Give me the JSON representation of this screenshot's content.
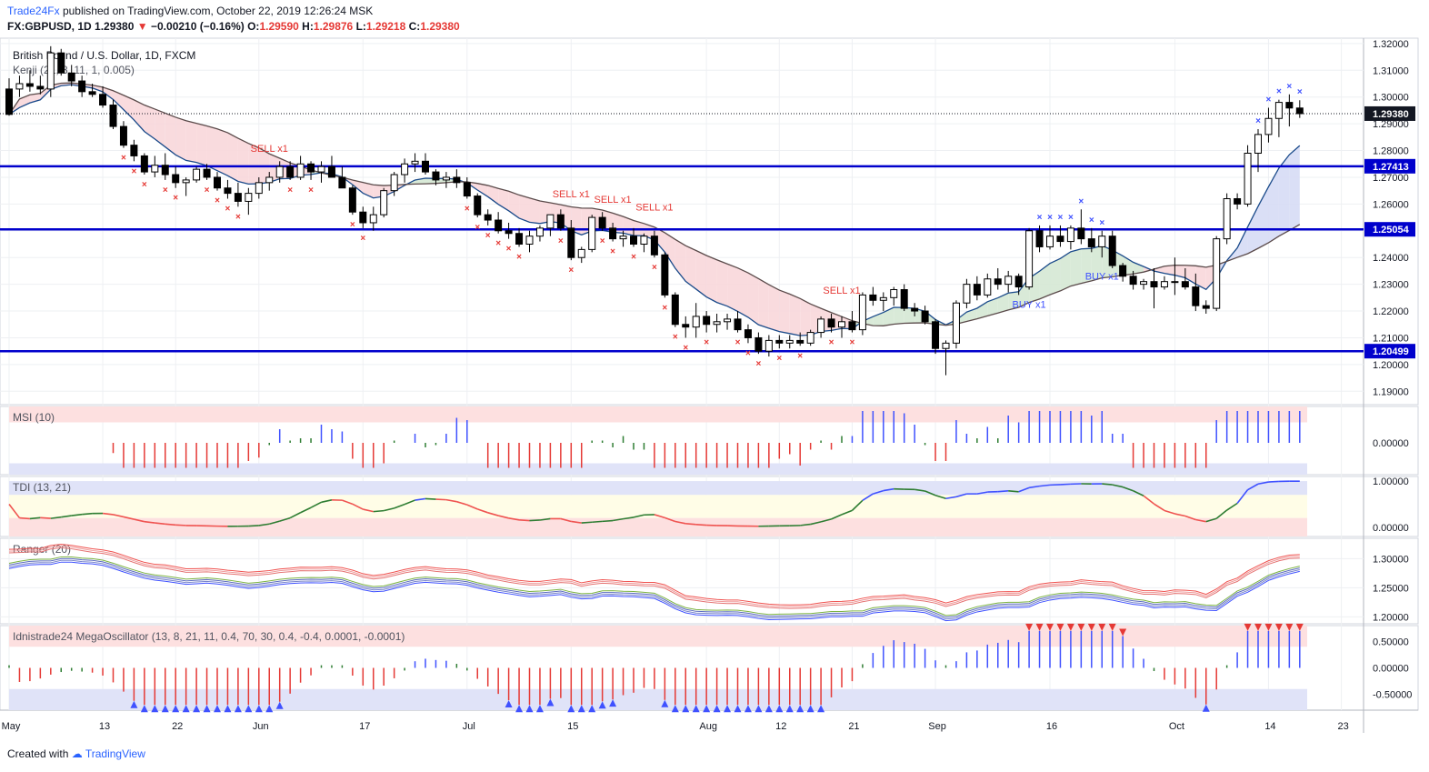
{
  "header": {
    "publisher": "Trade24Fx",
    "published_text": "published on TradingView.com, October 22, 2019 12:26:24 MSK",
    "symbol": "FX:GBPUSD, 1D",
    "last": "1.29380",
    "change": "−0.00210 (−0.16%)",
    "o_label": "O:",
    "o": "1.29590",
    "h_label": "H:",
    "h": "1.29876",
    "l_label": "L:",
    "l": "1.29218",
    "c_label": "C:",
    "c": "1.29380"
  },
  "footer": {
    "created_with": "Created with",
    "brand": "TradingView"
  },
  "colors": {
    "up": "#ffffff",
    "down": "#000000",
    "level": "#0000cc",
    "sell": "#e53935",
    "buy": "#3f51ff",
    "grid": "#eef0f3",
    "cloud_bear": "#f8d7da",
    "cloud_bull": "#d5e8d4",
    "cloud_blue": "#d6dcf5"
  },
  "chart_data": [
    {
      "type": "candlestick",
      "title": "British Pound / U.S. Dollar, 1D, FXCM",
      "indicator_label": "Kenji (21, 8, 11, 1, 0.005)",
      "ylim": [
        1.185,
        1.322
      ],
      "y_ticks": [
        "1.32000",
        "1.31000",
        "1.30000",
        "1.29000",
        "1.28000",
        "1.27000",
        "1.26000",
        "1.25000",
        "1.24000",
        "1.23000",
        "1.22000",
        "1.21000",
        "1.20000",
        "1.19000"
      ],
      "price_line": {
        "value": 1.2938,
        "label": "1.29380"
      },
      "levels": [
        {
          "value": 1.27413,
          "label": "1.27413"
        },
        {
          "value": 1.25054,
          "label": "1.25054"
        },
        {
          "value": 1.20499,
          "label": "1.20499"
        }
      ],
      "x_ticks": [
        {
          "label": "May",
          "i": 0
        },
        {
          "label": "13",
          "i": 9
        },
        {
          "label": "22",
          "i": 16
        },
        {
          "label": "Jun",
          "i": 24
        },
        {
          "label": "17",
          "i": 34
        },
        {
          "label": "Jul",
          "i": 44
        },
        {
          "label": "15",
          "i": 54
        },
        {
          "label": "Aug",
          "i": 67
        },
        {
          "label": "12",
          "i": 74
        },
        {
          "label": "21",
          "i": 81
        },
        {
          "label": "Sep",
          "i": 89
        },
        {
          "label": "16",
          "i": 100
        },
        {
          "label": "Oct",
          "i": 112
        },
        {
          "label": "14",
          "i": 121
        },
        {
          "label": "23",
          "i": 128
        }
      ],
      "signal_labels": [
        {
          "text": "SELL x1",
          "i": 25,
          "v": 1.2795
        },
        {
          "text": "SELL x1",
          "i": 54,
          "v": 1.2625
        },
        {
          "text": "SELL x1",
          "i": 58,
          "v": 1.2605
        },
        {
          "text": "SELL x1",
          "i": 62,
          "v": 1.2575
        },
        {
          "text": "SELL x1",
          "i": 80,
          "v": 1.2265
        },
        {
          "text": "BUY x1",
          "i": 98,
          "v": 1.2212
        },
        {
          "text": "BUY x1",
          "i": 105,
          "v": 1.2318
        }
      ],
      "candles": [
        [
          1.303,
          1.307,
          1.293,
          1.2935
        ],
        [
          1.303,
          1.308,
          1.3,
          1.305
        ],
        [
          1.305,
          1.31,
          1.302,
          1.304
        ],
        [
          1.304,
          1.308,
          1.301,
          1.303
        ],
        [
          1.303,
          1.319,
          1.3,
          1.3165
        ],
        [
          1.3165,
          1.318,
          1.308,
          1.309
        ],
        [
          1.309,
          1.312,
          1.304,
          1.306
        ],
        [
          1.306,
          1.308,
          1.3,
          1.302
        ],
        [
          1.302,
          1.305,
          1.3,
          1.301
        ],
        [
          1.301,
          1.304,
          1.296,
          1.297
        ],
        [
          1.297,
          1.299,
          1.288,
          1.289
        ],
        [
          1.289,
          1.291,
          1.281,
          1.282
        ],
        [
          1.282,
          1.284,
          1.276,
          1.278
        ],
        [
          1.278,
          1.279,
          1.271,
          1.272
        ],
        [
          1.272,
          1.278,
          1.27,
          1.2745
        ],
        [
          1.2745,
          1.279,
          1.269,
          1.271
        ],
        [
          1.271,
          1.274,
          1.266,
          1.268
        ],
        [
          1.268,
          1.27,
          1.263,
          1.269
        ],
        [
          1.269,
          1.274,
          1.268,
          1.273
        ],
        [
          1.273,
          1.275,
          1.269,
          1.27
        ],
        [
          1.27,
          1.272,
          1.265,
          1.266
        ],
        [
          1.266,
          1.269,
          1.262,
          1.264
        ],
        [
          1.264,
          1.268,
          1.259,
          1.261
        ],
        [
          1.261,
          1.266,
          1.256,
          1.264
        ],
        [
          1.264,
          1.27,
          1.262,
          1.268
        ],
        [
          1.268,
          1.272,
          1.265,
          1.27
        ],
        [
          1.27,
          1.276,
          1.268,
          1.274
        ],
        [
          1.274,
          1.276,
          1.269,
          1.27
        ],
        [
          1.27,
          1.278,
          1.269,
          1.275
        ],
        [
          1.275,
          1.276,
          1.269,
          1.272
        ],
        [
          1.272,
          1.276,
          1.268,
          1.274
        ],
        [
          1.274,
          1.278,
          1.27,
          1.27
        ],
        [
          1.27,
          1.274,
          1.266,
          1.266
        ],
        [
          1.266,
          1.267,
          1.256,
          1.257
        ],
        [
          1.257,
          1.259,
          1.251,
          1.253
        ],
        [
          1.253,
          1.259,
          1.25,
          1.256
        ],
        [
          1.256,
          1.266,
          1.255,
          1.265
        ],
        [
          1.265,
          1.272,
          1.263,
          1.271
        ],
        [
          1.271,
          1.277,
          1.268,
          1.275
        ],
        [
          1.275,
          1.279,
          1.272,
          1.276
        ],
        [
          1.276,
          1.279,
          1.271,
          1.272
        ],
        [
          1.272,
          1.273,
          1.267,
          1.269
        ],
        [
          1.269,
          1.272,
          1.266,
          1.27
        ],
        [
          1.27,
          1.273,
          1.266,
          1.268
        ],
        [
          1.268,
          1.27,
          1.262,
          1.263
        ],
        [
          1.263,
          1.264,
          1.255,
          1.256
        ],
        [
          1.256,
          1.258,
          1.252,
          1.254
        ],
        [
          1.254,
          1.257,
          1.249,
          1.25
        ],
        [
          1.25,
          1.253,
          1.247,
          1.249
        ],
        [
          1.249,
          1.251,
          1.244,
          1.245
        ],
        [
          1.245,
          1.25,
          1.242,
          1.248
        ],
        [
          1.248,
          1.252,
          1.246,
          1.251
        ],
        [
          1.251,
          1.256,
          1.248,
          1.256
        ],
        [
          1.256,
          1.258,
          1.25,
          1.251
        ],
        [
          1.251,
          1.254,
          1.239,
          1.24
        ],
        [
          1.24,
          1.244,
          1.238,
          1.243
        ],
        [
          1.243,
          1.256,
          1.242,
          1.255
        ],
        [
          1.255,
          1.257,
          1.25,
          1.251
        ],
        [
          1.251,
          1.253,
          1.246,
          1.247
        ],
        [
          1.247,
          1.25,
          1.244,
          1.248
        ],
        [
          1.248,
          1.251,
          1.244,
          1.245
        ],
        [
          1.245,
          1.249,
          1.242,
          1.248
        ],
        [
          1.248,
          1.25,
          1.24,
          1.241
        ],
        [
          1.241,
          1.242,
          1.225,
          1.226
        ],
        [
          1.226,
          1.227,
          1.214,
          1.215
        ],
        [
          1.215,
          1.218,
          1.21,
          1.214
        ],
        [
          1.214,
          1.223,
          1.21,
          1.218
        ],
        [
          1.218,
          1.22,
          1.212,
          1.215
        ],
        [
          1.215,
          1.219,
          1.212,
          1.216
        ],
        [
          1.216,
          1.219,
          1.213,
          1.217
        ],
        [
          1.217,
          1.22,
          1.212,
          1.213
        ],
        [
          1.213,
          1.215,
          1.208,
          1.21
        ],
        [
          1.21,
          1.212,
          1.204,
          1.205
        ],
        [
          1.205,
          1.211,
          1.203,
          1.209
        ],
        [
          1.209,
          1.211,
          1.206,
          1.208
        ],
        [
          1.208,
          1.211,
          1.206,
          1.209
        ],
        [
          1.209,
          1.212,
          1.207,
          1.208
        ],
        [
          1.208,
          1.213,
          1.207,
          1.212
        ],
        [
          1.212,
          1.218,
          1.21,
          1.217
        ],
        [
          1.217,
          1.219,
          1.212,
          1.214
        ],
        [
          1.214,
          1.218,
          1.21,
          1.216
        ],
        [
          1.216,
          1.22,
          1.212,
          1.213
        ],
        [
          1.213,
          1.227,
          1.211,
          1.226
        ],
        [
          1.226,
          1.229,
          1.222,
          1.224
        ],
        [
          1.224,
          1.227,
          1.22,
          1.225
        ],
        [
          1.225,
          1.229,
          1.222,
          1.228
        ],
        [
          1.228,
          1.23,
          1.22,
          1.221
        ],
        [
          1.221,
          1.223,
          1.218,
          1.22
        ],
        [
          1.22,
          1.222,
          1.215,
          1.216
        ],
        [
          1.216,
          1.217,
          1.204,
          1.206
        ],
        [
          1.206,
          1.209,
          1.196,
          1.208
        ],
        [
          1.208,
          1.224,
          1.206,
          1.223
        ],
        [
          1.223,
          1.232,
          1.221,
          1.23
        ],
        [
          1.23,
          1.233,
          1.224,
          1.226
        ],
        [
          1.226,
          1.234,
          1.225,
          1.232
        ],
        [
          1.232,
          1.236,
          1.228,
          1.23
        ],
        [
          1.23,
          1.235,
          1.227,
          1.233
        ],
        [
          1.233,
          1.234,
          1.226,
          1.229
        ],
        [
          1.229,
          1.251,
          1.228,
          1.25
        ],
        [
          1.25,
          1.252,
          1.242,
          1.244
        ],
        [
          1.244,
          1.252,
          1.243,
          1.248
        ],
        [
          1.248,
          1.252,
          1.244,
          1.246
        ],
        [
          1.246,
          1.252,
          1.243,
          1.251
        ],
        [
          1.251,
          1.258,
          1.245,
          1.247
        ],
        [
          1.247,
          1.251,
          1.242,
          1.244
        ],
        [
          1.244,
          1.25,
          1.24,
          1.248
        ],
        [
          1.248,
          1.25,
          1.236,
          1.237
        ],
        [
          1.237,
          1.238,
          1.231,
          1.233
        ],
        [
          1.233,
          1.235,
          1.228,
          1.23
        ],
        [
          1.23,
          1.232,
          1.228,
          1.231
        ],
        [
          1.231,
          1.236,
          1.221,
          1.229
        ],
        [
          1.229,
          1.233,
          1.228,
          1.231
        ],
        [
          1.231,
          1.24,
          1.226,
          1.231
        ],
        [
          1.231,
          1.236,
          1.228,
          1.229
        ],
        [
          1.229,
          1.234,
          1.22,
          1.222
        ],
        [
          1.222,
          1.224,
          1.219,
          1.221
        ],
        [
          1.221,
          1.248,
          1.22,
          1.247
        ],
        [
          1.247,
          1.264,
          1.245,
          1.262
        ],
        [
          1.262,
          1.264,
          1.258,
          1.26
        ],
        [
          1.26,
          1.282,
          1.259,
          1.279
        ],
        [
          1.279,
          1.288,
          1.272,
          1.286
        ],
        [
          1.286,
          1.296,
          1.283,
          1.292
        ],
        [
          1.292,
          1.299,
          1.285,
          1.298
        ],
        [
          1.298,
          1.301,
          1.289,
          1.2959
        ],
        [
          1.2959,
          1.2988,
          1.2922,
          1.2938
        ]
      ]
    },
    {
      "type": "bar",
      "indicator_label": "MSI (10)",
      "ylim": [
        -0.7,
        0.8
      ],
      "y_ticks": [
        "0.00000"
      ]
    },
    {
      "type": "line",
      "indicator_label": "TDI (13, 21)",
      "ylim": [
        -0.2,
        1.1
      ],
      "y_ticks": [
        "1.00000",
        "0.00000"
      ]
    },
    {
      "type": "line",
      "indicator_label": "Ranger (20)",
      "ylim": [
        1.188,
        1.335
      ],
      "y_ticks": [
        "1.30000",
        "1.25000",
        "1.20000"
      ]
    },
    {
      "type": "bar",
      "indicator_label": "Idnistrade24 MegaOscillator (13, 8, 21, 11, 0.4, 70, 30, 0.4, -0.4, 0.0001, -0.0001)",
      "ylim": [
        -0.8,
        0.8
      ],
      "y_ticks": [
        "0.50000",
        "0.00000",
        "-0.50000"
      ]
    }
  ]
}
